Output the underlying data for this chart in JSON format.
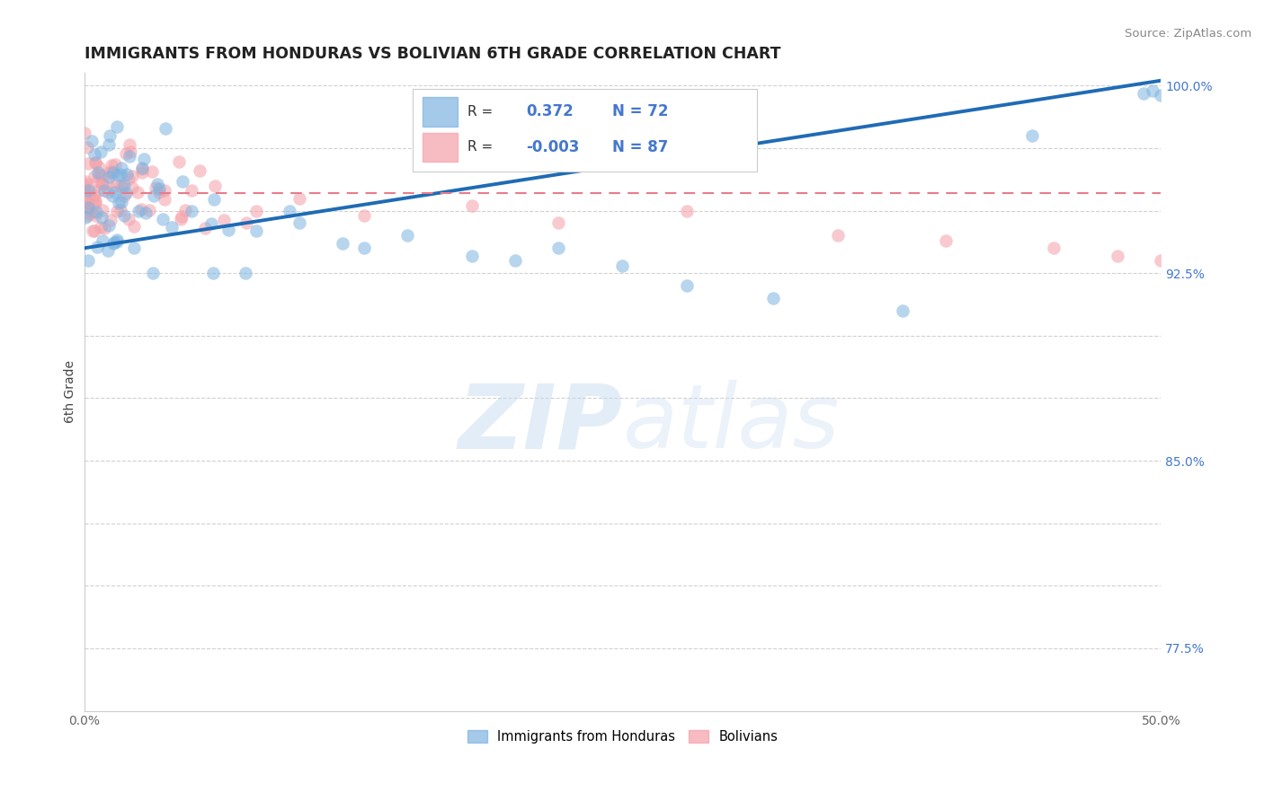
{
  "title": "IMMIGRANTS FROM HONDURAS VS BOLIVIAN 6TH GRADE CORRELATION CHART",
  "source_text": "Source: ZipAtlas.com",
  "ylabel": "6th Grade",
  "x_min": 0.0,
  "x_max": 0.5,
  "y_min": 0.75,
  "y_max": 1.005,
  "R_blue": 0.372,
  "N_blue": 72,
  "R_pink": -0.003,
  "N_pink": 87,
  "blue_color": "#7EB3E0",
  "pink_color": "#F4A0A8",
  "blue_line_color": "#1F6BB5",
  "pink_line_color": "#E87B8C",
  "grid_color": "#CCCCCC",
  "background_color": "#FFFFFF",
  "legend_blue_label": "Immigrants from Honduras",
  "legend_pink_label": "Bolivians",
  "ytick_positions": [
    0.775,
    0.8,
    0.825,
    0.85,
    0.875,
    0.9,
    0.925,
    0.95,
    0.975,
    1.0
  ],
  "ytick_labels_right": [
    "77.5%",
    "",
    "",
    "85.0%",
    "",
    "",
    "92.5%",
    "",
    "",
    "100.0%"
  ]
}
